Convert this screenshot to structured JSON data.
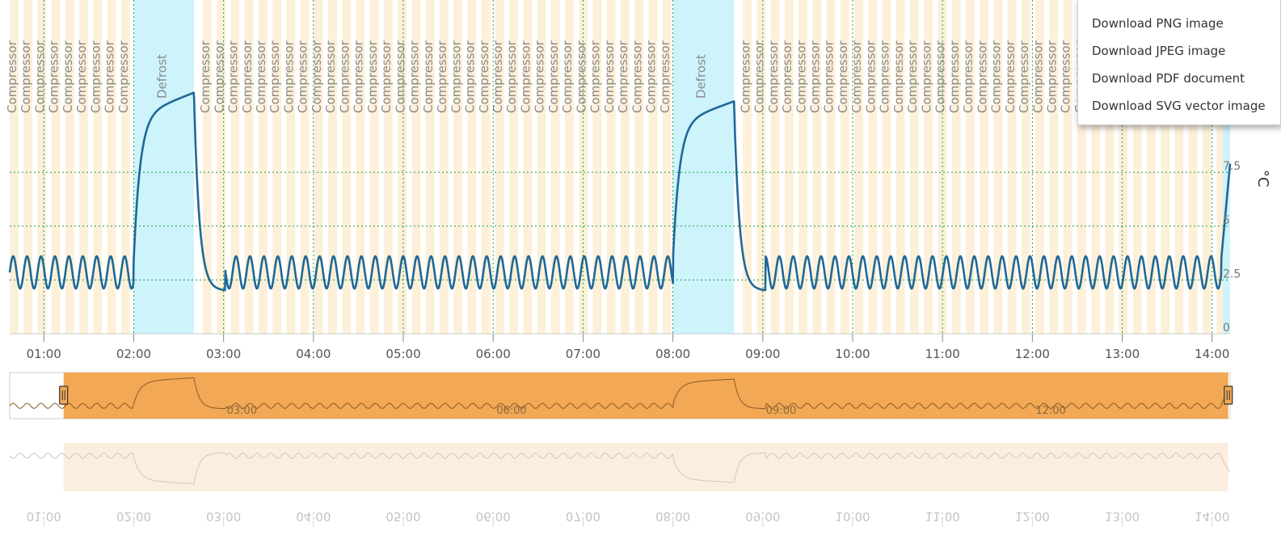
{
  "chart_data": {
    "type": "line",
    "title": "",
    "xlabel": "",
    "ylabel": "°C",
    "x_ticks": [
      "01:00",
      "02:00",
      "03:00",
      "04:00",
      "05:00",
      "06:00",
      "07:00",
      "08:00",
      "09:00",
      "10:00",
      "11:00",
      "12:00",
      "13:00",
      "14:00"
    ],
    "y_ticks": [
      "0",
      "2.5",
      "5",
      "7.5"
    ],
    "ylim": [
      0,
      12.5
    ],
    "xlim_hours": [
      0.62,
      14.2
    ],
    "navigator_labels": [
      "03:00",
      "06:00",
      "09:00",
      "12:00"
    ],
    "navigator_range_hours": [
      1.22,
      14.18
    ],
    "colors": {
      "line": "#1f6896",
      "compressor_band": "#fdf0d8",
      "defrost_band": "#cdf3fb",
      "navigator_fill": "#f2a854",
      "grid": "#1e9e40",
      "menu_hover": "#335cad"
    },
    "band_labels": {
      "compressor": "Compressor",
      "defrost": "Defrost"
    },
    "defrost_periods": [
      [
        2.0,
        2.67
      ],
      [
        8.0,
        8.68
      ]
    ],
    "series": [
      {
        "name": "",
        "baseline_low": 2.1,
        "baseline_high": 3.6,
        "defrost_peak": [
          11.2,
          10.8
        ],
        "values": [
          {
            "t": 0.62,
            "v": 2.4
          },
          {
            "t": 0.7,
            "v": 3.6
          },
          {
            "t": 0.78,
            "v": 2.2
          },
          {
            "t": 0.86,
            "v": 3.4
          },
          {
            "t": 2.0,
            "v": 3.4
          },
          {
            "t": 2.1,
            "v": 8.0
          },
          {
            "t": 2.3,
            "v": 10.2
          },
          {
            "t": 2.55,
            "v": 10.9
          },
          {
            "t": 2.67,
            "v": 11.2
          },
          {
            "t": 2.78,
            "v": 4.5
          },
          {
            "t": 3.0,
            "v": 2.2
          },
          {
            "t": 3.15,
            "v": 2.0
          },
          {
            "t": 8.0,
            "v": 2.3
          },
          {
            "t": 8.1,
            "v": 8.0
          },
          {
            "t": 8.35,
            "v": 10.3
          },
          {
            "t": 8.68,
            "v": 10.8
          },
          {
            "t": 8.78,
            "v": 4.4
          },
          {
            "t": 8.92,
            "v": 2.0
          },
          {
            "t": 14.05,
            "v": 3.4
          },
          {
            "t": 14.12,
            "v": 6.0
          },
          {
            "t": 14.2,
            "v": 7.8
          }
        ]
      }
    ]
  },
  "export_menu": {
    "items": [
      "Download PNG image",
      "Download JPEG image",
      "Download PDF document",
      "Download SVG vector image"
    ]
  }
}
